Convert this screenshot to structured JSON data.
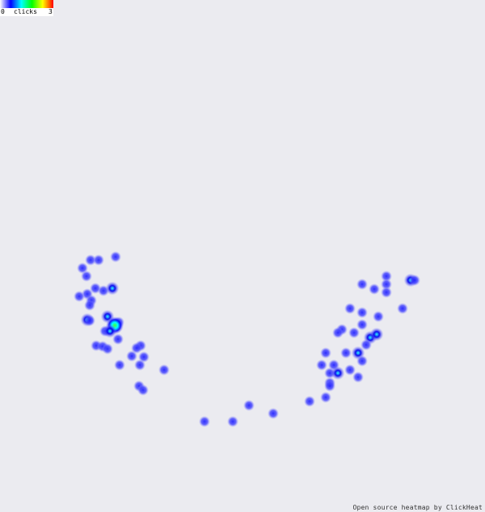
{
  "legend": {
    "min": "0",
    "label": "clicks",
    "max": "3",
    "gradient": [
      "#ffffff",
      "#0000ff",
      "#00ffff",
      "#00ff00",
      "#ffff00",
      "#ff0000"
    ]
  },
  "credit": "Open source heatmap by ClickHeat",
  "colors": {
    "background": "#ebebf0",
    "low": "#6666ff",
    "mid": "#0000ff",
    "high": "#00ffff",
    "peak": "#00ff00"
  },
  "clicks": [
    [
      143,
      318,
      1
    ],
    [
      112,
      322,
      1
    ],
    [
      122,
      322,
      1
    ],
    [
      102,
      332,
      1
    ],
    [
      107,
      342,
      1
    ],
    [
      118,
      357,
      1
    ],
    [
      128,
      360,
      1
    ],
    [
      139,
      357,
      2
    ],
    [
      108,
      364,
      1
    ],
    [
      98,
      367,
      1
    ],
    [
      113,
      372,
      1
    ],
    [
      111,
      378,
      1
    ],
    [
      133,
      392,
      2
    ],
    [
      108,
      396,
      2
    ],
    [
      111,
      397,
      1
    ],
    [
      147,
      399,
      1
    ],
    [
      130,
      410,
      1
    ],
    [
      142,
      403,
      3
    ],
    [
      136,
      410,
      2
    ],
    [
      146,
      420,
      1
    ],
    [
      174,
      428,
      1
    ],
    [
      169,
      431,
      1
    ],
    [
      119,
      428,
      1
    ],
    [
      127,
      429,
      1
    ],
    [
      133,
      432,
      1
    ],
    [
      178,
      442,
      1
    ],
    [
      163,
      441,
      1
    ],
    [
      148,
      452,
      1
    ],
    [
      173,
      452,
      1
    ],
    [
      203,
      458,
      1
    ],
    [
      172,
      478,
      1
    ],
    [
      177,
      483,
      1
    ],
    [
      253,
      522,
      1
    ],
    [
      288,
      522,
      1
    ],
    [
      308,
      502,
      1
    ],
    [
      338,
      512,
      1
    ],
    [
      383,
      497,
      1
    ],
    [
      403,
      492,
      1
    ],
    [
      448,
      352,
      1
    ],
    [
      463,
      358,
      1
    ],
    [
      478,
      342,
      1
    ],
    [
      478,
      352,
      1
    ],
    [
      478,
      362,
      1
    ],
    [
      508,
      347,
      2
    ],
    [
      513,
      347,
      1
    ],
    [
      498,
      382,
      1
    ],
    [
      433,
      382,
      1
    ],
    [
      448,
      387,
      1
    ],
    [
      468,
      392,
      1
    ],
    [
      448,
      402,
      1
    ],
    [
      423,
      408,
      1
    ],
    [
      418,
      412,
      1
    ],
    [
      438,
      412,
      1
    ],
    [
      458,
      418,
      2
    ],
    [
      466,
      414,
      2
    ],
    [
      453,
      427,
      1
    ],
    [
      443,
      437,
      2
    ],
    [
      428,
      437,
      1
    ],
    [
      448,
      447,
      1
    ],
    [
      403,
      437,
      1
    ],
    [
      398,
      452,
      1
    ],
    [
      413,
      452,
      1
    ],
    [
      408,
      462,
      1
    ],
    [
      418,
      462,
      2
    ],
    [
      433,
      458,
      1
    ],
    [
      443,
      467,
      1
    ],
    [
      408,
      474,
      1
    ],
    [
      408,
      478,
      1
    ]
  ]
}
